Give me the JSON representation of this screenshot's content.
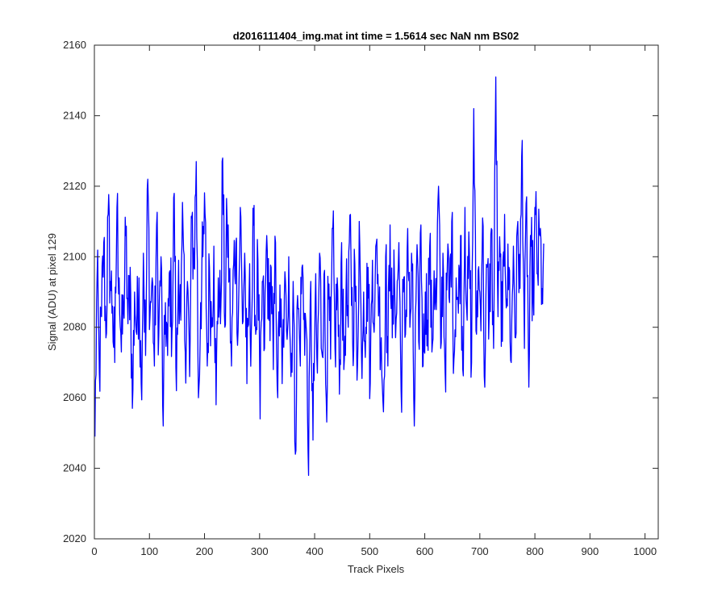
{
  "chart_data": {
    "type": "line",
    "title": "d2016111404_img.mat int time = 1.5614 sec  NaN nm BS02",
    "xlabel": "Track Pixels",
    "ylabel": "Signal (ADU) at pixel 129",
    "xlim": [
      0,
      1024
    ],
    "ylim": [
      2020,
      2160
    ],
    "xticks": [
      0,
      100,
      200,
      300,
      400,
      500,
      600,
      700,
      800,
      900,
      1000
    ],
    "yticks": [
      2020,
      2040,
      2060,
      2080,
      2100,
      2120,
      2140,
      2160
    ],
    "grid": false,
    "line_color": "#0000ff",
    "series": [
      {
        "x_start": 1,
        "x_step": 1,
        "points_per_value": 4,
        "values": [
          2049,
          2095,
          2067,
          2083,
          2104,
          2077,
          2112,
          2093,
          2086,
          2070,
          2114,
          2094,
          2073,
          2085,
          2106,
          2081,
          2097,
          2057,
          2090,
          2078,
          2094,
          2064,
          2101,
          2072,
          2122,
          2083,
          2094,
          2069,
          2109,
          2078,
          2100,
          2052,
          2087,
          2072,
          2096,
          2079,
          2118,
          2062,
          2099,
          2082,
          2108,
          2073,
          2093,
          2066,
          2111,
          2097,
          2127,
          2060,
          2087,
          2100,
          2112,
          2069,
          2097,
          2080,
          2103,
          2058,
          2094,
          2081,
          2128,
          2080,
          2111,
          2094,
          2069,
          2098,
          2104,
          2079,
          2114,
          2081,
          2101,
          2064,
          2090,
          2079,
          2109,
          2078,
          2099,
          2054,
          2093,
          2074,
          2106,
          2082,
          2097,
          2068,
          2104,
          2060,
          2092,
          2064,
          2089,
          2079,
          2100,
          2066,
          2093,
          2044,
          2089,
          2074,
          2097,
          2084,
          2079,
          2038,
          2093,
          2048,
          2087,
          2067,
          2101,
          2073,
          2095,
          2060,
          2088,
          2071,
          2108,
          2074,
          2094,
          2061,
          2104,
          2068,
          2090,
          2080,
          2112,
          2076,
          2098,
          2065,
          2110,
          2073,
          2090,
          2080,
          2097,
          2064,
          2099,
          2083,
          2105,
          2086,
          2077,
          2056,
          2100,
          2069,
          2109,
          2077,
          2093,
          2084,
          2104,
          2062,
          2090,
          2078,
          2108,
          2080,
          2096,
          2052,
          2097,
          2076,
          2109,
          2069,
          2090,
          2082,
          2103,
          2073,
          2096,
          2085,
          2120,
          2074,
          2101,
          2067,
          2098,
          2087,
          2110,
          2071,
          2094,
          2084,
          2106,
          2068,
          2114,
          2082,
          2101,
          2070,
          2142,
          2079,
          2096,
          2086,
          2111,
          2063,
          2097,
          2083,
          2108,
          2074,
          2151,
          2083,
          2100,
          2076,
          2112,
          2088,
          2097,
          2070,
          2103,
          2077,
          2110,
          2091,
          2133,
          2074,
          2117,
          2063,
          2103,
          2088,
          2112,
          2095,
          2106,
          2091
        ]
      }
    ]
  }
}
